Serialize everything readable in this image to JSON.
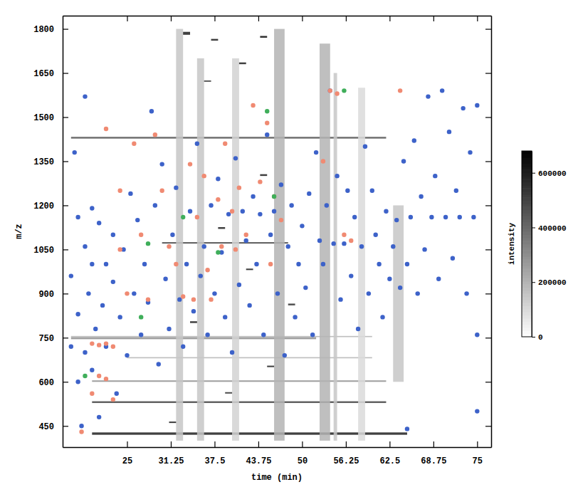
{
  "chart_data": {
    "type": "scatter",
    "xlabel": "time (min)",
    "ylabel": "m/z",
    "xlim": [
      15.8,
      77
    ],
    "ylim": [
      378,
      1845
    ],
    "xticks": [
      25,
      31.25,
      37.5,
      43.75,
      50,
      56.25,
      62.5,
      68.75,
      75
    ],
    "yticks": [
      450,
      600,
      750,
      900,
      1050,
      1200,
      1350,
      1500,
      1650,
      1800
    ],
    "heatmap": {
      "cells": [
        [
          17,
          62,
          1427,
          1433,
          450000
        ],
        [
          17,
          52,
          745,
          752,
          300000
        ],
        [
          20,
          65,
          420,
          428,
          600000
        ],
        [
          20,
          62,
          528,
          534,
          500000
        ],
        [
          20,
          62,
          600,
          605,
          300000
        ],
        [
          30,
          48,
          1070,
          1075,
          500000
        ],
        [
          17,
          60,
          752,
          756,
          200000
        ],
        [
          25,
          60,
          680,
          684,
          200000
        ],
        [
          32,
          33,
          400,
          1800,
          150000
        ],
        [
          35,
          36,
          400,
          1700,
          150000
        ],
        [
          40,
          41,
          400,
          1700,
          120000
        ],
        [
          46,
          47.5,
          400,
          1800,
          200000
        ],
        [
          52.5,
          54,
          400,
          1750,
          200000
        ],
        [
          54.5,
          55,
          400,
          1650,
          150000
        ],
        [
          63,
          64.5,
          600,
          1200,
          150000
        ],
        [
          58,
          59,
          400,
          1600,
          100000
        ],
        [
          33,
          34,
          1780,
          1790,
          600000
        ],
        [
          37,
          38,
          1760,
          1766,
          600000
        ],
        [
          44,
          45,
          1770,
          1776,
          650000
        ],
        [
          41,
          42,
          1680,
          1686,
          600000
        ],
        [
          36,
          37,
          1620,
          1625,
          500000
        ],
        [
          44,
          45,
          1300,
          1306,
          600000
        ],
        [
          38,
          39,
          1120,
          1126,
          600000
        ],
        [
          42,
          43,
          980,
          985,
          600000
        ],
        [
          48,
          49,
          860,
          866,
          550000
        ],
        [
          34,
          35,
          800,
          806,
          600000
        ],
        [
          45,
          46,
          650,
          655,
          600000
        ],
        [
          39,
          40,
          560,
          565,
          550000
        ],
        [
          31,
          32,
          460,
          465,
          600000
        ]
      ],
      "colorbar": {
        "label": "intensity",
        "range": [
          0,
          680000
        ],
        "ticks": [
          0,
          200000,
          400000,
          600000
        ]
      }
    },
    "series": [
      {
        "color": "#3d62c9",
        "marker": "circle",
        "x": [
          17,
          17,
          17.5,
          18,
          18,
          18,
          18.5,
          19,
          19,
          19,
          19.5,
          20,
          20,
          20,
          20.5,
          21,
          21,
          21.5,
          22,
          22,
          23,
          23,
          23.5,
          24,
          24.5,
          25,
          25.5,
          26,
          26.5,
          27,
          27.5,
          28,
          28.5,
          29,
          29.5,
          30,
          30.5,
          31,
          31.5,
          32,
          32.5,
          33,
          33.5,
          34,
          34.5,
          35,
          35.5,
          36,
          36.5,
          37,
          37.5,
          38,
          38.5,
          39,
          39.5,
          40,
          40.5,
          41,
          41.5,
          42,
          42.5,
          43,
          43.5,
          44,
          44.5,
          45,
          45.5,
          46,
          46.5,
          47,
          47.5,
          48,
          48.5,
          49,
          49.5,
          50,
          50.5,
          51,
          51.5,
          52,
          52.5,
          53,
          53.5,
          54,
          54.5,
          55,
          55.5,
          56,
          56.5,
          57,
          57.5,
          58,
          58.5,
          59,
          59.5,
          60,
          60.5,
          61,
          61.5,
          62,
          62.5,
          63,
          63.5,
          64,
          64.5,
          65,
          65.5,
          66,
          66.5,
          67,
          67.5,
          68,
          68.5,
          69,
          69.5,
          70,
          70.5,
          71,
          71.5,
          72,
          72.5,
          73,
          73.5,
          74,
          74.5,
          75,
          75,
          75,
          65
        ],
        "values": [
          720,
          960,
          1380,
          1160,
          830,
          600,
          450,
          1570,
          1060,
          700,
          900,
          1190,
          1000,
          640,
          780,
          1140,
          480,
          860,
          1000,
          720,
          940,
          1100,
          560,
          820,
          1050,
          690,
          1240,
          900,
          1150,
          760,
          1000,
          870,
          1520,
          1200,
          660,
          1340,
          950,
          780,
          1100,
          1260,
          880,
          720,
          1000,
          1180,
          840,
          1410,
          960,
          1060,
          760,
          1200,
          900,
          1290,
          1040,
          820,
          1170,
          700,
          1360,
          930,
          1180,
          1080,
          860,
          1230,
          1000,
          1170,
          760,
          1440,
          1100,
          1180,
          900,
          1270,
          690,
          1060,
          1200,
          820,
          1000,
          1130,
          920,
          1240,
          760,
          1380,
          1080,
          1000,
          1200,
          1590,
          1070,
          1300,
          880,
          1070,
          1250,
          960,
          1160,
          780,
          1060,
          1400,
          900,
          1250,
          1100,
          1000,
          820,
          1180,
          950,
          1060,
          1150,
          920,
          1350,
          1000,
          1160,
          1420,
          900,
          1230,
          1050,
          1570,
          1160,
          1300,
          950,
          1590,
          1160,
          1450,
          1020,
          1250,
          1160,
          1530,
          900,
          1380,
          1160,
          1540,
          760,
          500,
          440
        ]
      },
      {
        "color": "#f08a72",
        "marker": "circle",
        "x": [
          20,
          21,
          22,
          23,
          21,
          22,
          23,
          22,
          24,
          24,
          25,
          26,
          27,
          28,
          29,
          30,
          31,
          32,
          33,
          34,
          34.5,
          35,
          36,
          36.5,
          37,
          38,
          38.5,
          39,
          40,
          40.5,
          41,
          42,
          43,
          44,
          45,
          45.5,
          46,
          47,
          53,
          54,
          55,
          56,
          57,
          64,
          18.5,
          20
        ],
        "values": [
          730,
          725,
          730,
          720,
          620,
          610,
          540,
          1460,
          1250,
          1050,
          900,
          1410,
          1100,
          880,
          1440,
          1250,
          1060,
          1000,
          890,
          1340,
          880,
          1160,
          1300,
          980,
          880,
          1220,
          1060,
          1410,
          1180,
          1050,
          1260,
          1100,
          1540,
          1280,
          1480,
          1000,
          1230,
          1150,
          1350,
          1590,
          1580,
          1100,
          1080,
          1590,
          430,
          560
        ]
      },
      {
        "color": "#3fae5a",
        "marker": "circle",
        "x": [
          19,
          28,
          33,
          38,
          45,
          46,
          56,
          27
        ],
        "values": [
          620,
          1070,
          1160,
          1040,
          1520,
          1230,
          1590,
          820
        ]
      }
    ]
  }
}
